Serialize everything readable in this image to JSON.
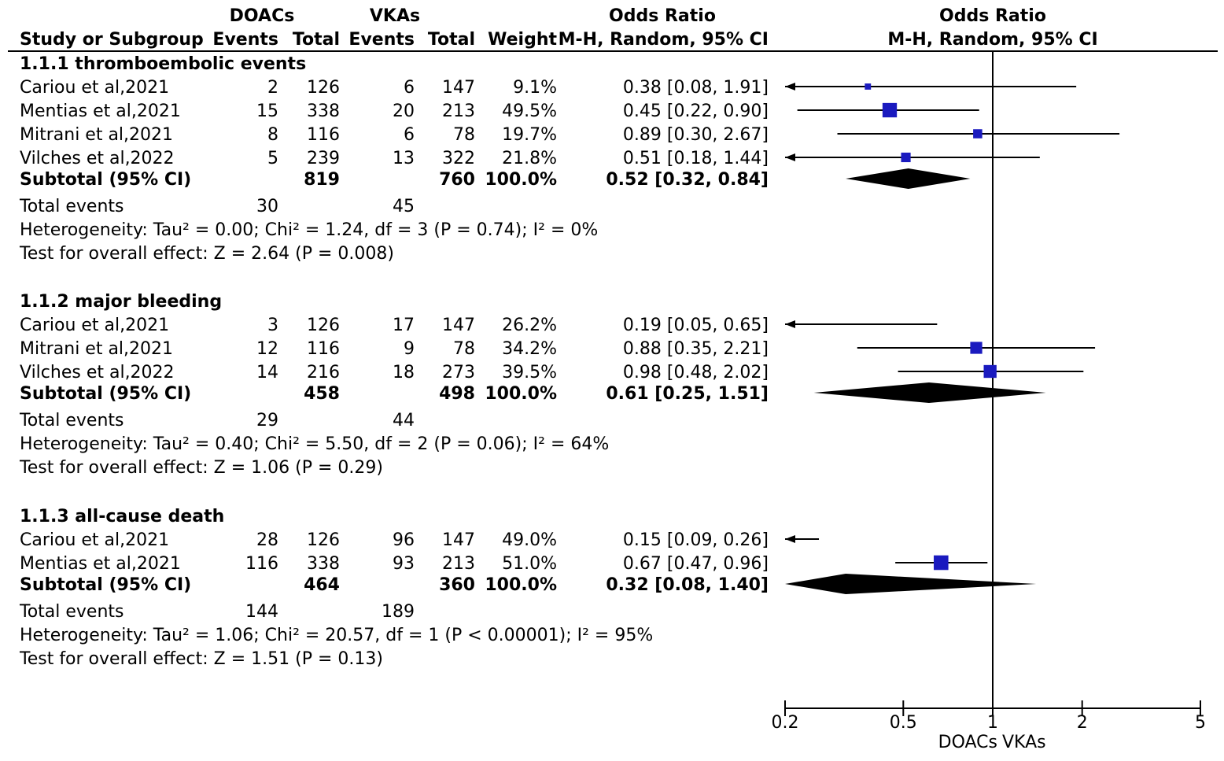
{
  "chart_data": {
    "type": "forest",
    "header": {
      "group1": "DOACs",
      "group2": "VKAs",
      "or_title": "Odds Ratio",
      "plot_title": "Odds Ratio",
      "col_study": "Study or Subgroup",
      "col_events": "Events",
      "col_total": "Total",
      "col_weight": "Weight",
      "col_method": "M-H, Random, 95% CI",
      "plot_method": "M-H, Random, 95% CI"
    },
    "subtotal_label": "Subtotal (95% CI)",
    "total_events_label": "Total events",
    "subgroups": [
      {
        "title": "1.1.1 thromboembolic events",
        "studies": [
          {
            "study": "Cariou et al,2021",
            "e1": 2,
            "t1": 126,
            "e2": 6,
            "t2": 147,
            "weight": "9.1%",
            "or_text": "0.38 [0.08, 1.91]",
            "or": 0.38,
            "lo": 0.08,
            "hi": 1.91
          },
          {
            "study": "Mentias et al,2021",
            "e1": 15,
            "t1": 338,
            "e2": 20,
            "t2": 213,
            "weight": "49.5%",
            "or_text": "0.45 [0.22, 0.90]",
            "or": 0.45,
            "lo": 0.22,
            "hi": 0.9
          },
          {
            "study": "Mitrani et al,2021",
            "e1": 8,
            "t1": 116,
            "e2": 6,
            "t2": 78,
            "weight": "19.7%",
            "or_text": "0.89 [0.30, 2.67]",
            "or": 0.89,
            "lo": 0.3,
            "hi": 2.67
          },
          {
            "study": "Vilches et al,2022",
            "e1": 5,
            "t1": 239,
            "e2": 13,
            "t2": 322,
            "weight": "21.8%",
            "or_text": "0.51 [0.18, 1.44]",
            "or": 0.51,
            "lo": 0.18,
            "hi": 1.44
          }
        ],
        "subtotal": {
          "t1": 819,
          "t2": 760,
          "weight": "100.0%",
          "or_text": "0.52 [0.32, 0.84]",
          "or": 0.52,
          "lo": 0.32,
          "hi": 0.84
        },
        "total_events": {
          "e1": 30,
          "e2": 45
        },
        "heterogeneity": "Heterogeneity: Tau² = 0.00; Chi² = 1.24, df = 3 (P = 0.74); I² = 0%",
        "overall_effect": "Test for overall effect: Z = 2.64 (P = 0.008)"
      },
      {
        "title": "1.1.2 major bleeding",
        "studies": [
          {
            "study": "Cariou et al,2021",
            "e1": 3,
            "t1": 126,
            "e2": 17,
            "t2": 147,
            "weight": "26.2%",
            "or_text": "0.19 [0.05, 0.65]",
            "or": 0.19,
            "lo": 0.05,
            "hi": 0.65
          },
          {
            "study": "Mitrani et al,2021",
            "e1": 12,
            "t1": 116,
            "e2": 9,
            "t2": 78,
            "weight": "34.2%",
            "or_text": "0.88 [0.35, 2.21]",
            "or": 0.88,
            "lo": 0.35,
            "hi": 2.21
          },
          {
            "study": "Vilches et al,2022",
            "e1": 14,
            "t1": 216,
            "e2": 18,
            "t2": 273,
            "weight": "39.5%",
            "or_text": "0.98 [0.48, 2.02]",
            "or": 0.98,
            "lo": 0.48,
            "hi": 2.02
          }
        ],
        "subtotal": {
          "t1": 458,
          "t2": 498,
          "weight": "100.0%",
          "or_text": "0.61 [0.25, 1.51]",
          "or": 0.61,
          "lo": 0.25,
          "hi": 1.51
        },
        "total_events": {
          "e1": 29,
          "e2": 44
        },
        "heterogeneity": "Heterogeneity: Tau² = 0.40; Chi² = 5.50, df = 2 (P = 0.06); I² = 64%",
        "overall_effect": "Test for overall effect: Z = 1.06 (P = 0.29)"
      },
      {
        "title": "1.1.3 all-cause death",
        "studies": [
          {
            "study": "Cariou et al,2021",
            "e1": 28,
            "t1": 126,
            "e2": 96,
            "t2": 147,
            "weight": "49.0%",
            "or_text": "0.15 [0.09, 0.26]",
            "or": 0.15,
            "lo": 0.09,
            "hi": 0.26
          },
          {
            "study": "Mentias et al,2021",
            "e1": 116,
            "t1": 338,
            "e2": 93,
            "t2": 213,
            "weight": "51.0%",
            "or_text": "0.67 [0.47, 0.96]",
            "or": 0.67,
            "lo": 0.47,
            "hi": 0.96
          }
        ],
        "subtotal": {
          "t1": 464,
          "t2": 360,
          "weight": "100.0%",
          "or_text": "0.32 [0.08, 1.40]",
          "or": 0.32,
          "lo": 0.08,
          "hi": 1.4
        },
        "total_events": {
          "e1": 144,
          "e2": 189
        },
        "heterogeneity": "Heterogeneity: Tau² = 1.06; Chi² = 20.57, df = 1 (P < 0.00001); I² = 95%",
        "overall_effect": "Test for overall effect: Z = 1.51 (P = 0.13)"
      }
    ],
    "x_axis": {
      "scale": "log",
      "range": [
        0.2,
        5
      ],
      "ticks": [
        0.2,
        0.5,
        1,
        2,
        5
      ],
      "tick_labels": [
        "0.2",
        "0.5",
        "1",
        "2",
        "5"
      ],
      "null_line": 1,
      "favours_left": "DOACs",
      "favours_right": "VKAs"
    },
    "colors": {
      "marker": "#1a1abf",
      "line": "#000000",
      "diamond": "#000000"
    }
  }
}
